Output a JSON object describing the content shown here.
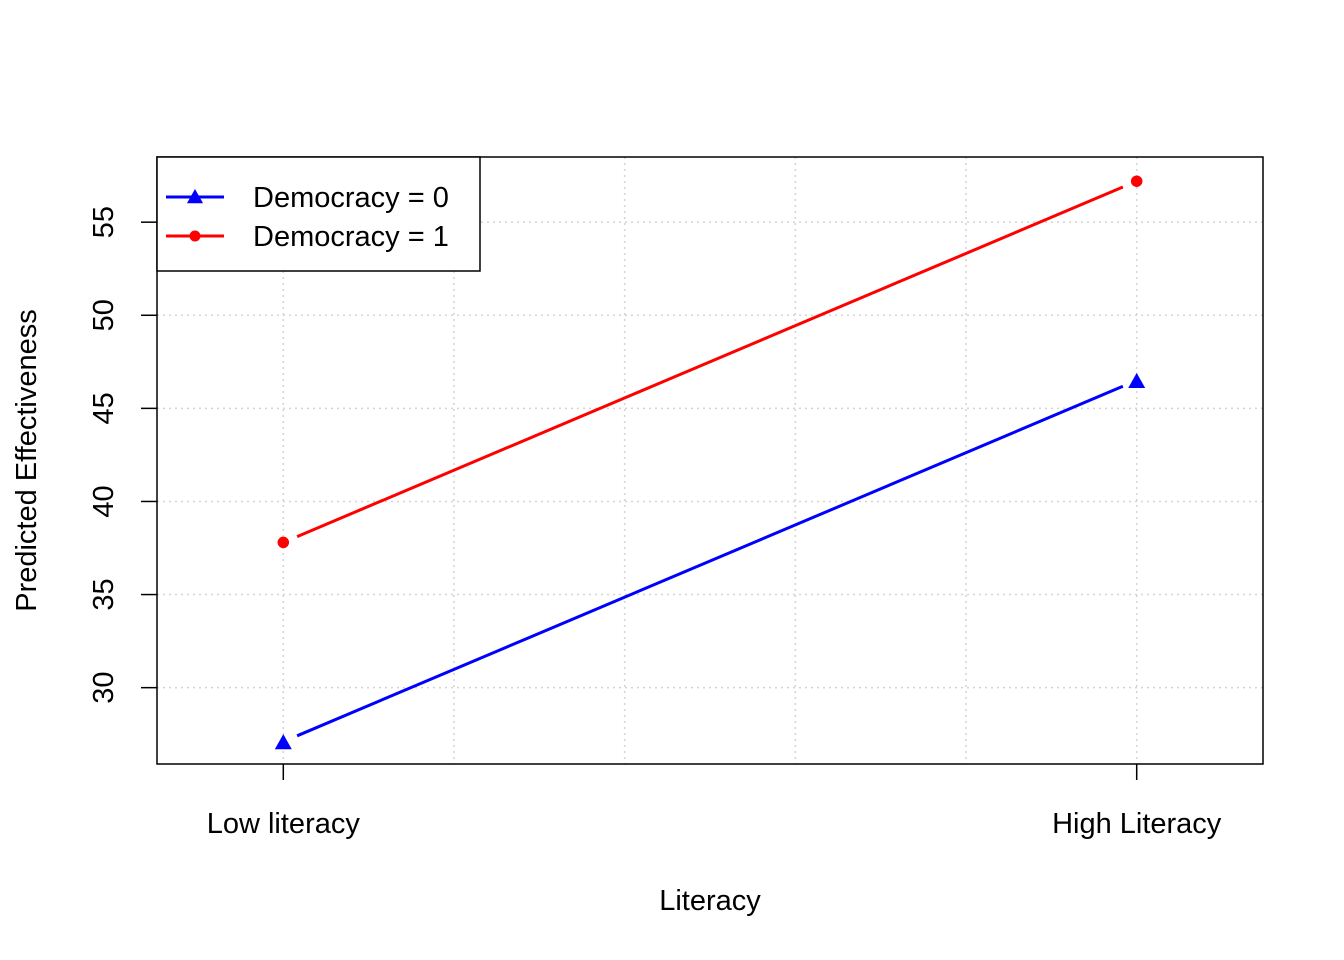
{
  "chart_data": {
    "type": "line",
    "title": "",
    "xlabel": "Literacy",
    "ylabel": "Predicted Effectiveness",
    "categories": [
      "Low literacy",
      "High Literacy"
    ],
    "x": [
      1,
      2
    ],
    "xlim": [
      0.852,
      2.148
    ],
    "ylim": [
      25.9,
      58.5
    ],
    "yticks": [
      30,
      35,
      40,
      45,
      50,
      55
    ],
    "grid": true,
    "legend_position": "top-left",
    "series": [
      {
        "name": "Democracy = 0",
        "values": [
          27.1,
          46.5
        ],
        "color": "#0000FF",
        "marker": "triangle"
      },
      {
        "name": "Democracy = 1",
        "values": [
          37.8,
          57.2
        ],
        "color": "#FF0000",
        "marker": "circle"
      }
    ]
  }
}
